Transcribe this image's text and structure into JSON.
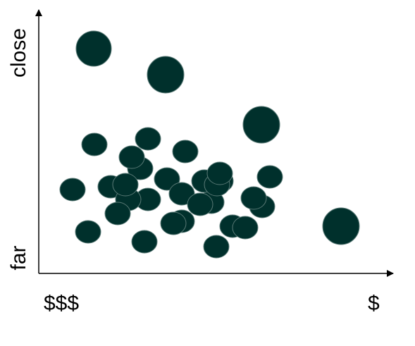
{
  "axes": {
    "y_top": "close",
    "y_bottom": "far",
    "x_left": "$$$",
    "x_right": "$"
  }
}
